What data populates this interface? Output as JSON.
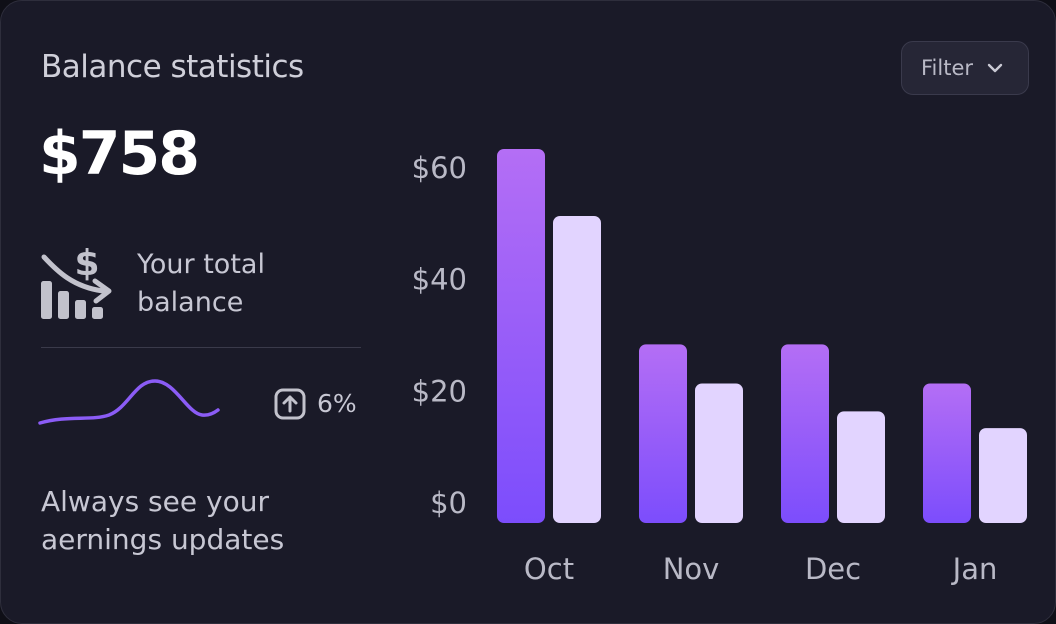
{
  "card": {
    "title": "Balance statistics",
    "filter_label": "Filter",
    "amount": "$758",
    "balance_label": "Your total balance",
    "growth_value": "6%",
    "tagline": "Always see your aernings updates",
    "icons": {
      "balance": "money-decrease-chart-icon",
      "growth": "arrow-up-square-icon",
      "filter": "chevron-down-icon"
    }
  },
  "colors": {
    "primary_top": "#b46ef5",
    "primary_bottom": "#7c4dfc",
    "secondary": "#e2d4ff",
    "sparkline": "#8b5cf6"
  },
  "chart_data": {
    "type": "bar",
    "categories": [
      "Oct",
      "Nov",
      "Dec",
      "Jan"
    ],
    "series": [
      {
        "values": [
          67,
          32,
          32,
          25
        ]
      },
      {
        "values": [
          55,
          25,
          20,
          17
        ]
      }
    ],
    "y_ticks": [
      "$0",
      "$20",
      "$40",
      "$60"
    ],
    "ylim": [
      0,
      67
    ],
    "grid": false
  }
}
